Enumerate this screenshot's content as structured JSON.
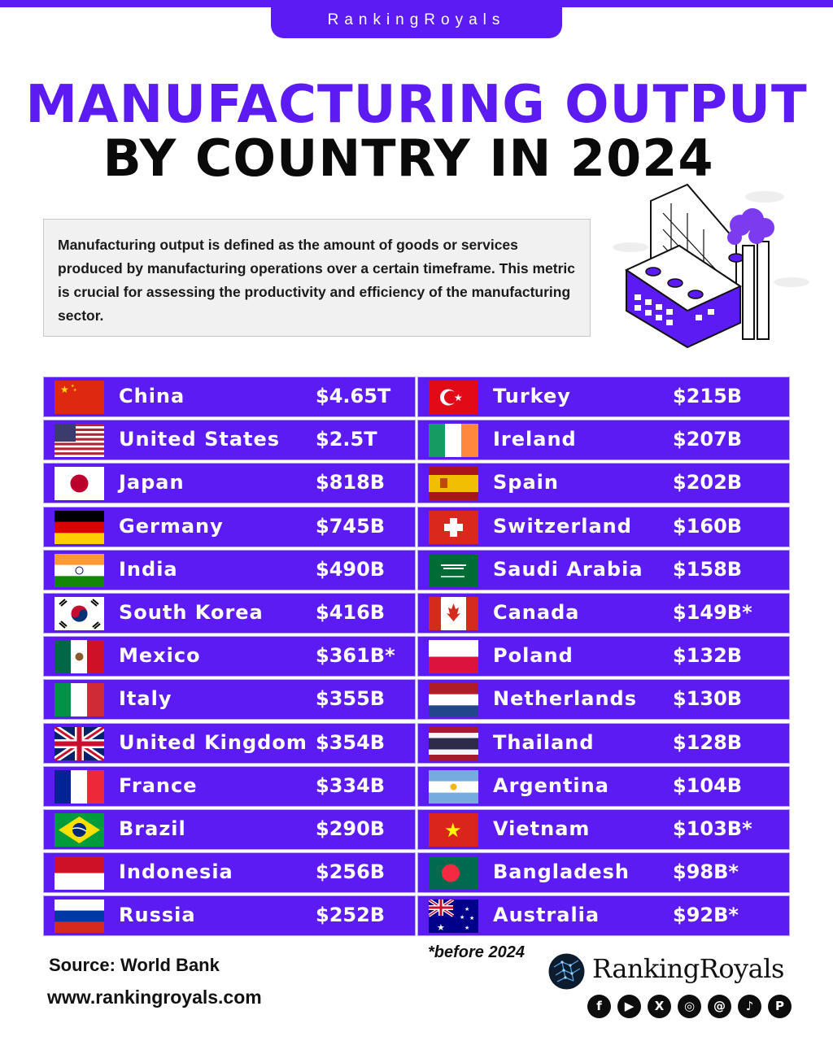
{
  "brand": {
    "tab_label": "RankingRoyals",
    "logo_text": "RankingRoyals",
    "accent_color": "#5b1bf2"
  },
  "title": {
    "line1": "MANUFACTURING OUTPUT",
    "line2": "BY COUNTRY IN 2024"
  },
  "description": "Manufacturing output is defined as the amount of goods or services produced by manufacturing operations over a certain timeframe. This metric is crucial for assessing the productivity and efficiency of the manufacturing sector.",
  "chart_data": {
    "type": "table",
    "columns": [
      "flag",
      "country",
      "value"
    ],
    "rows": [
      {
        "country": "China",
        "value": "$4.65T",
        "amount_usd_billion": 4650,
        "flag": "cn",
        "before_2024": false
      },
      {
        "country": "United States",
        "value": "$2.5T",
        "amount_usd_billion": 2500,
        "flag": "us",
        "before_2024": false
      },
      {
        "country": "Japan",
        "value": "$818B",
        "amount_usd_billion": 818,
        "flag": "jp",
        "before_2024": false
      },
      {
        "country": "Germany",
        "value": "$745B",
        "amount_usd_billion": 745,
        "flag": "de",
        "before_2024": false
      },
      {
        "country": "India",
        "value": "$490B",
        "amount_usd_billion": 490,
        "flag": "in",
        "before_2024": false
      },
      {
        "country": "South Korea",
        "value": "$416B",
        "amount_usd_billion": 416,
        "flag": "kr",
        "before_2024": false
      },
      {
        "country": "Mexico",
        "value": "$361B*",
        "amount_usd_billion": 361,
        "flag": "mx",
        "before_2024": true
      },
      {
        "country": "Italy",
        "value": "$355B",
        "amount_usd_billion": 355,
        "flag": "it",
        "before_2024": false
      },
      {
        "country": "United Kingdom",
        "value": "$354B",
        "amount_usd_billion": 354,
        "flag": "gb",
        "before_2024": false
      },
      {
        "country": "France",
        "value": "$334B",
        "amount_usd_billion": 334,
        "flag": "fr",
        "before_2024": false
      },
      {
        "country": "Brazil",
        "value": "$290B",
        "amount_usd_billion": 290,
        "flag": "br",
        "before_2024": false
      },
      {
        "country": "Indonesia",
        "value": "$256B",
        "amount_usd_billion": 256,
        "flag": "id",
        "before_2024": false
      },
      {
        "country": "Russia",
        "value": "$252B",
        "amount_usd_billion": 252,
        "flag": "ru",
        "before_2024": false
      },
      {
        "country": "Turkey",
        "value": "$215B",
        "amount_usd_billion": 215,
        "flag": "tr",
        "before_2024": false
      },
      {
        "country": "Ireland",
        "value": "$207B",
        "amount_usd_billion": 207,
        "flag": "ie",
        "before_2024": false
      },
      {
        "country": "Spain",
        "value": "$202B",
        "amount_usd_billion": 202,
        "flag": "es",
        "before_2024": false
      },
      {
        "country": "Switzerland",
        "value": "$160B",
        "amount_usd_billion": 160,
        "flag": "ch",
        "before_2024": false
      },
      {
        "country": "Saudi Arabia",
        "value": "$158B",
        "amount_usd_billion": 158,
        "flag": "sa",
        "before_2024": false
      },
      {
        "country": "Canada",
        "value": "$149B*",
        "amount_usd_billion": 149,
        "flag": "ca",
        "before_2024": true
      },
      {
        "country": "Poland",
        "value": "$132B",
        "amount_usd_billion": 132,
        "flag": "pl",
        "before_2024": false
      },
      {
        "country": "Netherlands",
        "value": "$130B",
        "amount_usd_billion": 130,
        "flag": "nl",
        "before_2024": false
      },
      {
        "country": "Thailand",
        "value": "$128B",
        "amount_usd_billion": 128,
        "flag": "th",
        "before_2024": false
      },
      {
        "country": "Argentina",
        "value": "$104B",
        "amount_usd_billion": 104,
        "flag": "ar",
        "before_2024": false
      },
      {
        "country": "Vietnam",
        "value": "$103B*",
        "amount_usd_billion": 103,
        "flag": "vn",
        "before_2024": true
      },
      {
        "country": "Bangladesh",
        "value": "$98B*",
        "amount_usd_billion": 98,
        "flag": "bd",
        "before_2024": true
      },
      {
        "country": "Australia",
        "value": "$92B*",
        "amount_usd_billion": 92,
        "flag": "au",
        "before_2024": true
      }
    ]
  },
  "footer": {
    "source": "Source: World Bank",
    "website": "www.rankingroyals.com",
    "footnote": "*before 2024",
    "social_icons": [
      "facebook-icon",
      "youtube-icon",
      "x-icon",
      "instagram-icon",
      "threads-icon",
      "tiktok-icon",
      "pinterest-icon"
    ]
  }
}
